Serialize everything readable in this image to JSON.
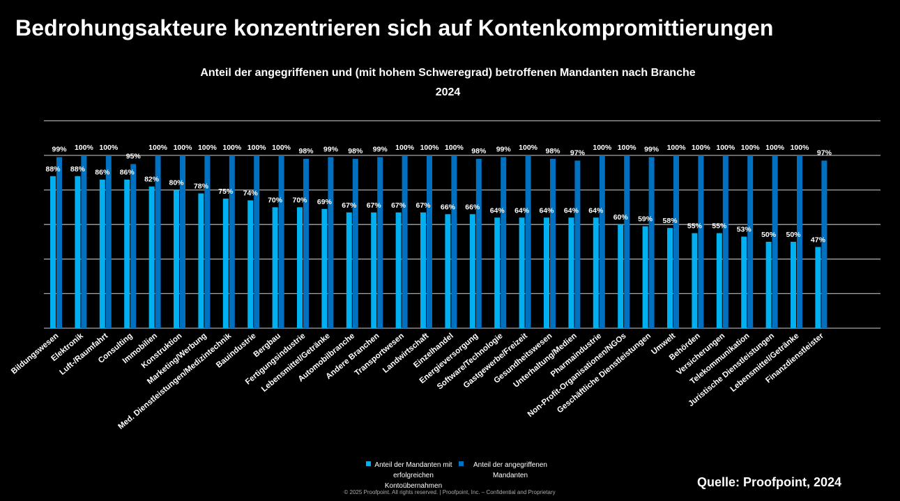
{
  "page": {
    "title": "Bedrohungsakteure konzentrieren sich auf Kontenkompromittierungen",
    "source": "Quelle: Proofpoint, 2024",
    "footer": "© 2025  Proofpoint. All rights reserved.  |  Proofpoint, Inc. – Confidential and Proprietary"
  },
  "legend": {
    "a_label": "Anteil der Mandanten mit erfolgreichen Kontoübernahmen",
    "b_label": "Anteil der angegriffenen Mandanten"
  },
  "colors": {
    "series_a": "#00b0f0",
    "series_b": "#0070c0",
    "grid": "#a6a6a6",
    "label": "#ffffff"
  },
  "chart_data": {
    "type": "bar",
    "title": "Anteil der angegriffenen und (mit hohem Schweregrad) betroffenen Mandanten nach Branche",
    "subtitle": "2024",
    "xlabel": "",
    "ylabel": "",
    "ylim": [
      0,
      125
    ],
    "grid": true,
    "legend_position": "bottom",
    "categories": [
      "Bildungswesen",
      "Elektronik",
      "Luft-/Raumfahrt",
      "Consulting",
      "Immobilien",
      "Konstruktion",
      "Marketing/Werbung",
      "Med. Dienstleistungen/Medizintechnik",
      "Bauindustrie",
      "Bergbau",
      "Fertigungsindustrie",
      "Lebensmittel/Getränke",
      "Automobilbranche",
      "Andere Branchen",
      "Transportwesen",
      "Landwirtschaft",
      "Einzelhandel",
      "Energieversorgung",
      "Software/Technologie",
      "Gastgewerbe/Freizeit",
      "Gesundheitswesen",
      "Unterhaltung/Medien",
      "Pharmaindustrie",
      "Non-Profit-Organisationen/NGOs",
      "Geschäftliche Dienstleistungen",
      "Umwelt",
      "Behörden",
      "Versicherungen",
      "Telekommunikation",
      "Juristische Dienstleistungen",
      "Lebensmittel/Getränke",
      "Finanzdienstleister"
    ],
    "series": [
      {
        "name": "Anteil der Mandanten mit erfolgreichen Kontoübernahmen",
        "values": [
          88,
          88,
          86,
          86,
          82,
          80,
          78,
          75,
          74,
          70,
          70,
          69,
          67,
          67,
          67,
          67,
          66,
          66,
          64,
          64,
          64,
          64,
          64,
          60,
          59,
          58,
          55,
          55,
          53,
          50,
          50,
          47
        ],
        "labels": [
          "88%",
          "88%",
          "86%",
          "86%",
          "82%",
          "80%",
          "78%",
          "75%",
          "74%",
          "70%",
          "70%",
          "69%",
          "67%",
          "67%",
          "67%",
          "67%",
          "66%",
          "66%",
          "64%",
          "64%",
          "64%",
          "64%",
          "64%",
          "60%",
          "59%",
          "58%",
          "55%",
          "55%",
          "53%",
          "50%",
          "50%",
          "47%"
        ]
      },
      {
        "name": "Anteil der angegriffenen Mandanten",
        "values": [
          99,
          100,
          100,
          95,
          100,
          100,
          100,
          100,
          100,
          100,
          98,
          99,
          98,
          99,
          100,
          100,
          100,
          98,
          99,
          100,
          98,
          97,
          100,
          100,
          99,
          100,
          100,
          100,
          100,
          100,
          100,
          97
        ],
        "labels": [
          "99%",
          "100%",
          "100%",
          "95%",
          "100%",
          "100%",
          "100%",
          "100%",
          "100%",
          "100%",
          "98%",
          "99%",
          "98%",
          "99%",
          "100%",
          "100%",
          "100%",
          "98%",
          "99%",
          "100%",
          "98%",
          "97%",
          "100%",
          "100%",
          "99%",
          "100%",
          "100%",
          "100%",
          "100%",
          "100%",
          "100%",
          "97%"
        ]
      }
    ]
  }
}
